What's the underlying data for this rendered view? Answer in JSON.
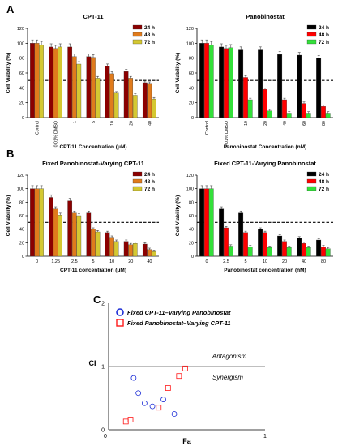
{
  "panel_labels": [
    "A",
    "B",
    "C"
  ],
  "colors": {
    "dark_red": "#8b0000",
    "orange": "#e07b1c",
    "yellow": "#d4c832",
    "black": "#000000",
    "red": "#ff0000",
    "green": "#33e03a",
    "blue_marker": "#1a2bd6",
    "red_marker": "#ff1a1a"
  },
  "chart_data": [
    {
      "id": "a1",
      "type": "bar",
      "title": "CPT-11",
      "ylabel": "Cell Viability (%)",
      "xlabel": "CPT-11 Concentration (μM)",
      "ylim": [
        0,
        120
      ],
      "yticks": [
        0,
        20,
        40,
        60,
        80,
        100,
        120
      ],
      "reference_line": 50,
      "categories": [
        "Control",
        "0.01% DMSO",
        "1",
        "5",
        "10",
        "20",
        "40"
      ],
      "legend_position": "top-right",
      "series": [
        {
          "name": "24 h",
          "color": "#8b0000",
          "values": [
            100,
            95,
            95,
            82,
            69,
            62,
            47
          ]
        },
        {
          "name": "48 h",
          "color": "#e07b1c",
          "values": [
            100,
            93,
            82,
            81,
            59,
            53,
            46
          ]
        },
        {
          "name": "72 h",
          "color": "#d4c832",
          "values": [
            98,
            95,
            72,
            53,
            33,
            30,
            25
          ]
        }
      ]
    },
    {
      "id": "a2",
      "type": "bar",
      "title": "Panobinostat",
      "ylabel": "Cell Viability (%)",
      "xlabel": "Panobinostat Concentration (nM)",
      "ylim": [
        0,
        120
      ],
      "yticks": [
        0,
        20,
        40,
        60,
        80,
        100,
        120
      ],
      "reference_line": 50,
      "categories": [
        "Control",
        "0.01% DMSO",
        "10",
        "20",
        "40",
        "60",
        "80"
      ],
      "legend_position": "top-right",
      "series": [
        {
          "name": "24 h",
          "color": "#000000",
          "values": [
            100,
            95,
            91,
            91,
            85,
            84,
            80
          ]
        },
        {
          "name": "48 h",
          "color": "#ff0000",
          "values": [
            100,
            93,
            54,
            38,
            24,
            19,
            15
          ]
        },
        {
          "name": "72 h",
          "color": "#33e03a",
          "values": [
            98,
            94,
            24,
            9,
            6,
            6,
            6
          ]
        }
      ]
    },
    {
      "id": "b1",
      "type": "bar",
      "title": "Fixed Panobinostat-Varying CPT-11",
      "ylabel": "Cell Viability (%)",
      "xlabel": "CPT-11 concentration (μM)",
      "ylim": [
        0,
        120
      ],
      "yticks": [
        0,
        20,
        40,
        60,
        80,
        100,
        120
      ],
      "reference_line": 50,
      "categories": [
        "0",
        "1.25",
        "2.5",
        "5",
        "10",
        "20",
        "40"
      ],
      "legend_position": "top-right",
      "series": [
        {
          "name": "24 h",
          "color": "#8b0000",
          "values": [
            100,
            87,
            82,
            64,
            35,
            22,
            18
          ]
        },
        {
          "name": "48 h",
          "color": "#e07b1c",
          "values": [
            100,
            70,
            64,
            40,
            28,
            17,
            10
          ]
        },
        {
          "name": "72 h",
          "color": "#d4c832",
          "values": [
            100,
            61,
            60,
            36,
            22,
            19,
            7
          ]
        }
      ]
    },
    {
      "id": "b2",
      "type": "bar",
      "title": "Fixed CPT-11-Varying Panobinostat",
      "ylabel": "Cell Viability (%)",
      "xlabel": "Panobinostat concentration (nM)",
      "ylim": [
        0,
        120
      ],
      "yticks": [
        0,
        20,
        40,
        60,
        80,
        100,
        120
      ],
      "reference_line": 50,
      "categories": [
        "0",
        "2.5",
        "5",
        "10",
        "20",
        "40",
        "80"
      ],
      "legend_position": "top-right",
      "series": [
        {
          "name": "24 h",
          "color": "#000000",
          "values": [
            100,
            70,
            64,
            40,
            30,
            27,
            24
          ]
        },
        {
          "name": "48 h",
          "color": "#ff0000",
          "values": [
            100,
            42,
            35,
            35,
            22,
            19,
            14
          ]
        },
        {
          "name": "72 h",
          "color": "#33e03a",
          "values": [
            100,
            15,
            14,
            13,
            13,
            13,
            11
          ]
        }
      ]
    },
    {
      "id": "c",
      "type": "scatter",
      "xlabel": "Fa",
      "ylabel": "CI",
      "xlim": [
        0,
        1
      ],
      "ylim": [
        0,
        2
      ],
      "xticks": [
        "0",
        "1"
      ],
      "yticks": [
        "0",
        "1",
        "2"
      ],
      "reference_line": 1,
      "region_labels": {
        "above": "Antagonism",
        "below": "Synergism"
      },
      "legend_position": "top-left",
      "series": [
        {
          "name": "Fixed CPT-11–Varying Panobinostat",
          "marker": "circle",
          "color": "#1a2bd6",
          "points": [
            [
              0.16,
              0.82
            ],
            [
              0.19,
              0.58
            ],
            [
              0.23,
              0.42
            ],
            [
              0.28,
              0.37
            ],
            [
              0.35,
              0.48
            ],
            [
              0.42,
              0.25
            ]
          ]
        },
        {
          "name": "Fixed Panobinostat–Varying CPT-11",
          "marker": "square",
          "color": "#ff1a1a",
          "points": [
            [
              0.11,
              0.13
            ],
            [
              0.14,
              0.16
            ],
            [
              0.32,
              0.35
            ],
            [
              0.38,
              0.66
            ],
            [
              0.45,
              0.85
            ],
            [
              0.49,
              0.97
            ]
          ]
        }
      ]
    }
  ]
}
